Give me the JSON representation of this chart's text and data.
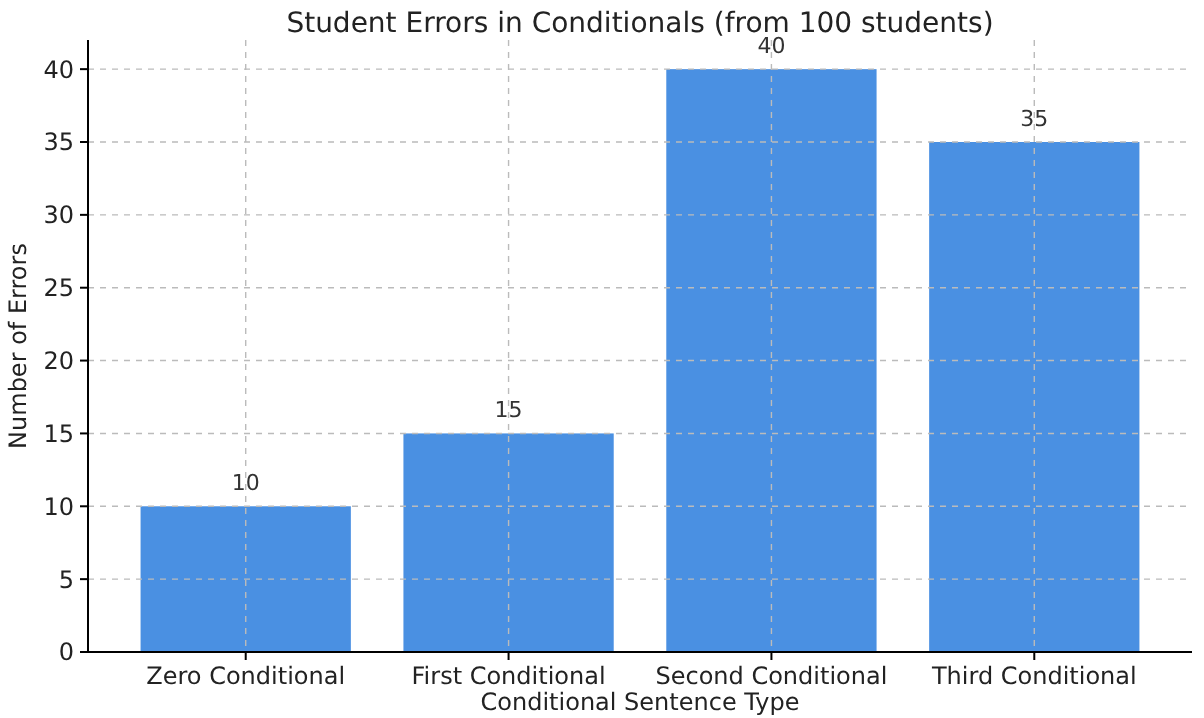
{
  "chart_data": {
    "type": "bar",
    "title": "Student Errors in Conditionals (from 100 students)",
    "xlabel": "Conditional Sentence Type",
    "ylabel": "Number of Errors",
    "categories": [
      "Zero Conditional",
      "First Conditional",
      "Second Conditional",
      "Third Conditional"
    ],
    "values": [
      10,
      15,
      40,
      35
    ],
    "color": "#4a90e2",
    "ylim": [
      0,
      42
    ],
    "yticks": [
      0,
      5,
      10,
      15,
      20,
      25,
      30,
      35,
      40
    ],
    "grid": true,
    "data_labels": true
  }
}
